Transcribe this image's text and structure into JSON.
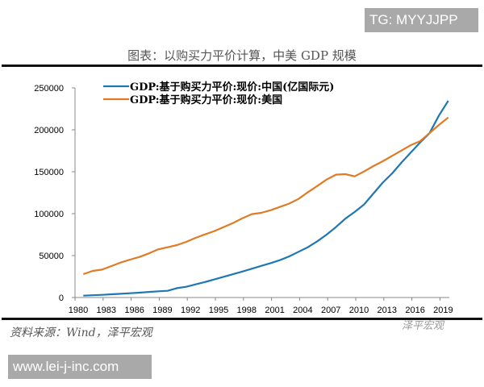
{
  "watermark_top": "TG: MYYJJPP",
  "watermark_bottom": "www.lei-j-inc.com",
  "wechat_watermark": "泽平宏观",
  "source": "资料来源：Wind，泽平宏观",
  "colors": {
    "china": "#1f77b4",
    "us": "#e07b24"
  },
  "chart_data": {
    "type": "line",
    "title": "图表：以购买力平价计算，中美 GDP 规模",
    "xlabel": "",
    "ylabel": "",
    "ylim": [
      0,
      250000
    ],
    "yticks": [
      "0",
      "50000",
      "100000",
      "150000",
      "200000",
      "250000"
    ],
    "xticks": [
      "1980",
      "1983",
      "1986",
      "1989",
      "1992",
      "1995",
      "1998",
      "2001",
      "2004",
      "2007",
      "2010",
      "2013",
      "2016",
      "2019"
    ],
    "x": [
      1980,
      1981,
      1982,
      1983,
      1984,
      1985,
      1986,
      1987,
      1988,
      1989,
      1990,
      1991,
      1992,
      1993,
      1994,
      1995,
      1996,
      1997,
      1998,
      1999,
      2000,
      2001,
      2002,
      2003,
      2004,
      2005,
      2006,
      2007,
      2008,
      2009,
      2010,
      2011,
      2012,
      2013,
      2014,
      2015,
      2016,
      2017,
      2018,
      2019
    ],
    "legend_position": "top-left",
    "grid": false,
    "series": [
      {
        "name": "GDP:基于购买力平价:现价:中国(亿国际元)",
        "values": [
          2200,
          2700,
          3200,
          3800,
          4400,
          5100,
          5800,
          6600,
          7400,
          8000,
          11200,
          12800,
          15700,
          18500,
          21500,
          24700,
          27800,
          31000,
          34300,
          37700,
          41000,
          44500,
          49000,
          54500,
          60000,
          67000,
          75000,
          84000,
          94000,
          102000,
          111000,
          124000,
          137000,
          148000,
          161000,
          173000,
          185000,
          196000,
          217000,
          234600
        ]
      },
      {
        "name": "GDP:基于购买力平价:现价:美国",
        "values": [
          27900,
          31700,
          33300,
          37500,
          41700,
          45200,
          48400,
          52600,
          57400,
          59900,
          62500,
          66300,
          71200,
          75300,
          79200,
          84000,
          88800,
          94500,
          99400,
          101000,
          104000,
          108000,
          112000,
          117600,
          125600,
          133000,
          140700,
          146500,
          147100,
          144500,
          150300,
          156700,
          162500,
          168900,
          175300,
          181700,
          186500,
          196100,
          205800,
          214700
        ]
      }
    ]
  }
}
